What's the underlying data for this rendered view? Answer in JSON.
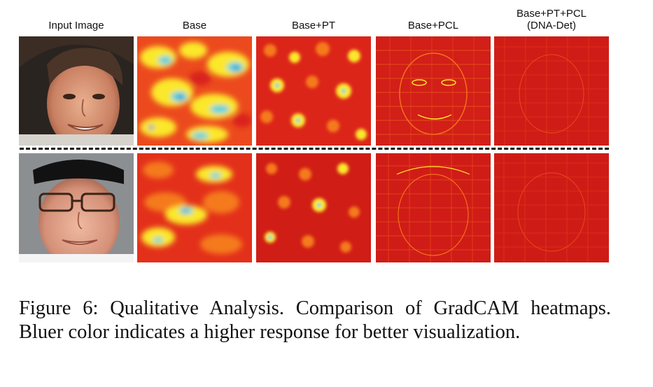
{
  "figure": {
    "columns": [
      {
        "id": "input",
        "label": "Input Image",
        "label_line2": ""
      },
      {
        "id": "base",
        "label": "Base",
        "label_line2": ""
      },
      {
        "id": "base-pt",
        "label": "Base+PT",
        "label_line2": ""
      },
      {
        "id": "base-pcl",
        "label": "Base+PCL",
        "label_line2": ""
      },
      {
        "id": "base-pt-pcl",
        "label": "Base+PT+PCL",
        "label_line2": "(DNA-Det)"
      }
    ],
    "caption": "Figure 6: Qualitative Analysis. Comparison of GradCAM heatmaps. Bluer color indicates a higher response for better visualization.",
    "colors": {
      "heat_red": "#e0241a",
      "heat_orange": "#f5701c",
      "heat_yellow": "#fbe82a",
      "heat_cyan": "#3fd0e8",
      "heat_blue": "#1a5fe0"
    }
  }
}
